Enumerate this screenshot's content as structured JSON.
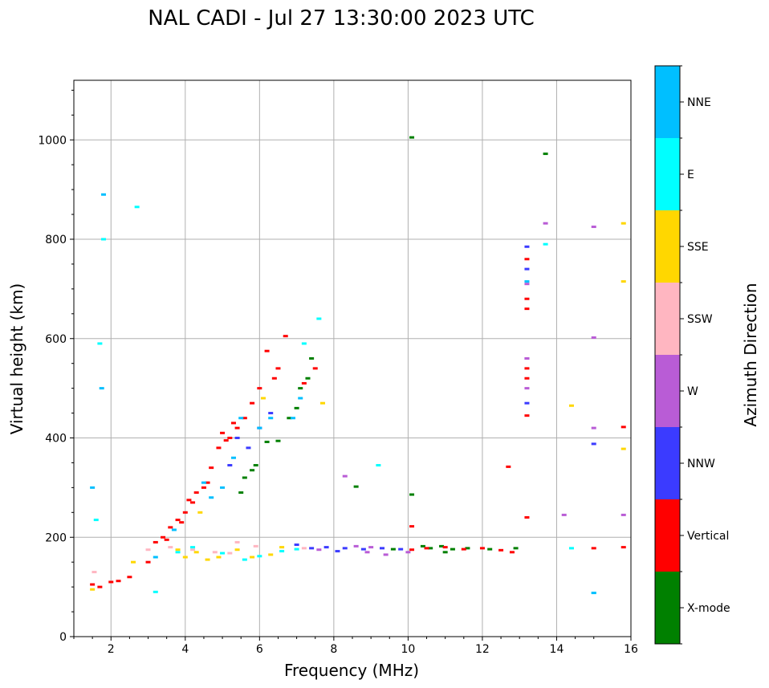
{
  "chart_data": {
    "type": "scatter",
    "title": "NAL CADI - Jul 27 13:30:00 2023 UTC",
    "xlabel": "Frequency (MHz)",
    "ylabel": "Virtual height (km)",
    "xlim": [
      1,
      16
    ],
    "ylim": [
      0,
      1120
    ],
    "xticks": [
      2,
      4,
      6,
      8,
      10,
      12,
      14,
      16
    ],
    "yticks": [
      0,
      200,
      400,
      600,
      800,
      1000
    ],
    "grid": true,
    "colorbar": {
      "label": "Azimuth Direction",
      "categories": [
        {
          "name": "X-mode",
          "color": "#008000"
        },
        {
          "name": "Vertical",
          "color": "#ff0000"
        },
        {
          "name": "NNW",
          "color": "#3b3bff"
        },
        {
          "name": "W",
          "color": "#b95cd6"
        },
        {
          "name": "SSW",
          "color": "#ffb6c1"
        },
        {
          "name": "SSE",
          "color": "#ffd700"
        },
        {
          "name": "E",
          "color": "#00ffff"
        },
        {
          "name": "NNE",
          "color": "#00bfff"
        }
      ]
    },
    "series": [
      {
        "name": "X-mode",
        "points": [
          [
            10.1,
            1005
          ],
          [
            13.7,
            972
          ],
          [
            8.6,
            302
          ],
          [
            10.1,
            286
          ],
          [
            5.8,
            335
          ],
          [
            5.6,
            320
          ],
          [
            6.2,
            392
          ],
          [
            6.5,
            394
          ],
          [
            7.0,
            460
          ],
          [
            7.3,
            520
          ],
          [
            10.6,
            178
          ],
          [
            10.9,
            182
          ],
          [
            11.2,
            176
          ],
          [
            11.6,
            178
          ],
          [
            12.2,
            176
          ],
          [
            12.9,
            178
          ],
          [
            9.6,
            176
          ],
          [
            10.4,
            182
          ],
          [
            11.0,
            170
          ],
          [
            5.5,
            290
          ],
          [
            5.9,
            345
          ],
          [
            6.8,
            440
          ],
          [
            7.1,
            500
          ],
          [
            7.4,
            560
          ]
        ]
      },
      {
        "name": "Vertical",
        "points": [
          [
            1.5,
            105
          ],
          [
            1.7,
            100
          ],
          [
            2.0,
            110
          ],
          [
            2.2,
            112
          ],
          [
            2.5,
            120
          ],
          [
            3.0,
            150
          ],
          [
            3.2,
            190
          ],
          [
            3.4,
            200
          ],
          [
            3.6,
            220
          ],
          [
            3.8,
            235
          ],
          [
            4.0,
            250
          ],
          [
            4.1,
            275
          ],
          [
            4.3,
            290
          ],
          [
            4.5,
            300
          ],
          [
            4.7,
            340
          ],
          [
            4.9,
            380
          ],
          [
            5.0,
            410
          ],
          [
            5.2,
            400
          ],
          [
            5.4,
            420
          ],
          [
            5.6,
            440
          ],
          [
            5.8,
            470
          ],
          [
            6.0,
            500
          ],
          [
            6.2,
            575
          ],
          [
            6.5,
            540
          ],
          [
            6.7,
            605
          ],
          [
            7.2,
            510
          ],
          [
            7.5,
            540
          ],
          [
            10.1,
            175
          ],
          [
            10.1,
            222
          ],
          [
            10.5,
            178
          ],
          [
            11.0,
            180
          ],
          [
            11.5,
            176
          ],
          [
            12.0,
            178
          ],
          [
            12.5,
            174
          ],
          [
            12.8,
            170
          ],
          [
            12.7,
            342
          ],
          [
            13.2,
            240
          ],
          [
            13.2,
            445
          ],
          [
            13.2,
            520
          ],
          [
            13.2,
            540
          ],
          [
            13.2,
            660
          ],
          [
            13.2,
            680
          ],
          [
            13.2,
            760
          ],
          [
            15.0,
            178
          ],
          [
            15.8,
            180
          ],
          [
            15.8,
            422
          ],
          [
            3.5,
            195
          ],
          [
            3.9,
            230
          ],
          [
            4.2,
            270
          ],
          [
            4.6,
            310
          ],
          [
            5.1,
            395
          ],
          [
            5.3,
            430
          ],
          [
            6.4,
            520
          ]
        ]
      },
      {
        "name": "NNW",
        "points": [
          [
            7.8,
            180
          ],
          [
            8.3,
            178
          ],
          [
            8.8,
            176
          ],
          [
            9.3,
            178
          ],
          [
            9.8,
            176
          ],
          [
            13.2,
            470
          ],
          [
            13.2,
            560
          ],
          [
            13.2,
            740
          ],
          [
            13.2,
            785
          ],
          [
            15.0,
            388
          ],
          [
            5.2,
            345
          ],
          [
            6.0,
            420
          ],
          [
            6.3,
            450
          ],
          [
            7.0,
            185
          ],
          [
            7.4,
            178
          ],
          [
            8.1,
            172
          ],
          [
            5.4,
            400
          ],
          [
            5.7,
            380
          ]
        ]
      },
      {
        "name": "W",
        "points": [
          [
            8.9,
            170
          ],
          [
            9.4,
            165
          ],
          [
            9.0,
            180
          ],
          [
            10.0,
            170
          ],
          [
            13.2,
            500
          ],
          [
            13.2,
            560
          ],
          [
            13.2,
            710
          ],
          [
            13.7,
            832
          ],
          [
            14.2,
            245
          ],
          [
            15.0,
            420
          ],
          [
            15.0,
            602
          ],
          [
            15.0,
            825
          ],
          [
            15.8,
            245
          ],
          [
            8.3,
            323
          ],
          [
            7.6,
            175
          ],
          [
            8.6,
            182
          ]
        ]
      },
      {
        "name": "SSW",
        "points": [
          [
            1.55,
            130
          ],
          [
            3.0,
            175
          ],
          [
            3.6,
            180
          ],
          [
            4.2,
            175
          ],
          [
            4.8,
            170
          ],
          [
            5.2,
            168
          ],
          [
            5.4,
            190
          ],
          [
            5.9,
            182
          ],
          [
            7.2,
            178
          ]
        ]
      },
      {
        "name": "SSE",
        "points": [
          [
            1.5,
            95
          ],
          [
            2.6,
            150
          ],
          [
            3.8,
            175
          ],
          [
            4.0,
            160
          ],
          [
            4.3,
            170
          ],
          [
            4.6,
            155
          ],
          [
            4.9,
            160
          ],
          [
            5.4,
            175
          ],
          [
            5.8,
            160
          ],
          [
            6.3,
            165
          ],
          [
            6.6,
            180
          ],
          [
            14.4,
            465
          ],
          [
            15.8,
            378
          ],
          [
            15.8,
            715
          ],
          [
            15.8,
            832
          ],
          [
            4.4,
            250
          ],
          [
            6.1,
            480
          ],
          [
            7.7,
            470
          ]
        ]
      },
      {
        "name": "E",
        "points": [
          [
            1.6,
            235
          ],
          [
            1.7,
            590
          ],
          [
            1.8,
            800
          ],
          [
            2.7,
            865
          ],
          [
            3.2,
            90
          ],
          [
            3.8,
            170
          ],
          [
            4.2,
            180
          ],
          [
            5.0,
            168
          ],
          [
            5.6,
            155
          ],
          [
            6.0,
            162
          ],
          [
            6.6,
            172
          ],
          [
            7.0,
            176
          ],
          [
            9.2,
            345
          ],
          [
            13.7,
            790
          ],
          [
            14.4,
            178
          ],
          [
            15.0,
            88
          ],
          [
            7.6,
            640
          ],
          [
            7.2,
            590
          ]
        ]
      },
      {
        "name": "NNE",
        "points": [
          [
            1.5,
            300
          ],
          [
            1.75,
            500
          ],
          [
            1.8,
            890
          ],
          [
            3.2,
            160
          ],
          [
            3.7,
            215
          ],
          [
            4.5,
            310
          ],
          [
            5.0,
            300
          ],
          [
            5.5,
            440
          ],
          [
            6.0,
            420
          ],
          [
            6.3,
            440
          ],
          [
            6.9,
            440
          ],
          [
            7.1,
            480
          ],
          [
            13.2,
            715
          ],
          [
            15.0,
            88
          ],
          [
            4.7,
            280
          ],
          [
            5.3,
            360
          ]
        ]
      }
    ]
  }
}
